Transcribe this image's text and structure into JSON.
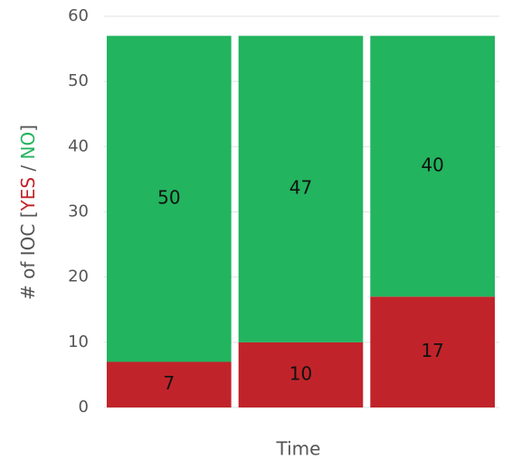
{
  "chart_data": {
    "type": "stacked-bar",
    "categories": [
      null,
      null,
      null
    ],
    "series": [
      {
        "name": "YES",
        "color": "#c0242a",
        "values": [
          7,
          10,
          17
        ]
      },
      {
        "name": "NO",
        "color": "#22b45e",
        "values": [
          50,
          47,
          40
        ]
      }
    ],
    "x_label": "Time",
    "y_label_parts": [
      "# of IOC [",
      " / ",
      "]"
    ],
    "ylim": [
      0,
      60
    ],
    "yticks": [
      0,
      10,
      20,
      30,
      40,
      50,
      60
    ],
    "grid": true
  }
}
